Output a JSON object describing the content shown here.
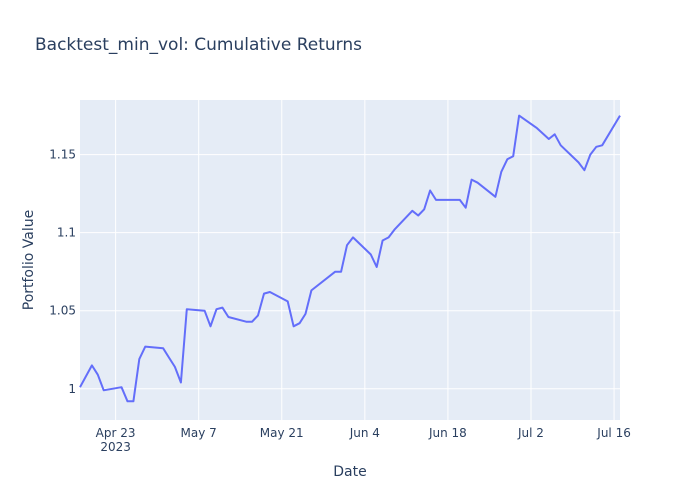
{
  "chart_data": {
    "type": "line",
    "title": "Backtest_min_vol: Cumulative Returns",
    "xlabel": "Date",
    "ylabel": "Portfolio Value",
    "grid": true,
    "legend": "none",
    "colors": {
      "line": "#636efa",
      "plot_bg": "#e5ecf6",
      "grid": "#ffffff",
      "text": "#2a3f5f"
    },
    "x_ticks": [
      {
        "date": "2023-04-23",
        "label": "Apr 23",
        "sublabel": "2023"
      },
      {
        "date": "2023-05-07",
        "label": "May 7"
      },
      {
        "date": "2023-05-21",
        "label": "May 21"
      },
      {
        "date": "2023-06-04",
        "label": "Jun 4"
      },
      {
        "date": "2023-06-18",
        "label": "Jun 18"
      },
      {
        "date": "2023-07-02",
        "label": "Jul 2"
      },
      {
        "date": "2023-07-16",
        "label": "Jul 16"
      }
    ],
    "y_ticks": [
      {
        "value": 1.0,
        "label": "1"
      },
      {
        "value": 1.05,
        "label": "1.05"
      },
      {
        "value": 1.1,
        "label": "1.1"
      },
      {
        "value": 1.15,
        "label": "1.15"
      }
    ],
    "xlim": [
      "2023-04-17",
      "2023-07-17"
    ],
    "ylim": [
      0.98,
      1.185
    ],
    "series": [
      {
        "x": [
          "2023-04-17",
          "2023-04-19",
          "2023-04-20",
          "2023-04-21",
          "2023-04-24",
          "2023-04-25",
          "2023-04-26",
          "2023-04-27",
          "2023-04-28",
          "2023-05-01",
          "2023-05-02",
          "2023-05-03",
          "2023-05-04",
          "2023-05-05",
          "2023-05-08",
          "2023-05-09",
          "2023-05-10",
          "2023-05-11",
          "2023-05-12",
          "2023-05-15",
          "2023-05-16",
          "2023-05-17",
          "2023-05-18",
          "2023-05-19",
          "2023-05-22",
          "2023-05-23",
          "2023-05-24",
          "2023-05-25",
          "2023-05-26",
          "2023-05-30",
          "2023-05-31",
          "2023-06-01",
          "2023-06-02",
          "2023-06-05",
          "2023-06-06",
          "2023-06-07",
          "2023-06-08",
          "2023-06-09",
          "2023-06-12",
          "2023-06-13",
          "2023-06-14",
          "2023-06-15",
          "2023-06-16",
          "2023-06-20",
          "2023-06-21",
          "2023-06-22",
          "2023-06-23",
          "2023-06-26",
          "2023-06-27",
          "2023-06-28",
          "2023-06-29",
          "2023-06-30",
          "2023-07-03",
          "2023-07-05",
          "2023-07-06",
          "2023-07-07",
          "2023-07-10",
          "2023-07-11",
          "2023-07-12",
          "2023-07-13",
          "2023-07-14",
          "2023-07-17"
        ],
        "y": [
          1.001,
          1.015,
          1.009,
          0.999,
          1.001,
          0.992,
          0.992,
          1.019,
          1.027,
          1.026,
          1.02,
          1.014,
          1.004,
          1.051,
          1.05,
          1.04,
          1.051,
          1.052,
          1.046,
          1.043,
          1.043,
          1.047,
          1.061,
          1.062,
          1.056,
          1.04,
          1.042,
          1.048,
          1.063,
          1.075,
          1.075,
          1.092,
          1.097,
          1.086,
          1.078,
          1.095,
          1.097,
          1.102,
          1.114,
          1.111,
          1.115,
          1.127,
          1.121,
          1.121,
          1.116,
          1.134,
          1.132,
          1.123,
          1.139,
          1.147,
          1.149,
          1.175,
          1.167,
          1.16,
          1.163,
          1.156,
          1.145,
          1.14,
          1.15,
          1.155,
          1.156,
          1.175
        ]
      }
    ]
  }
}
